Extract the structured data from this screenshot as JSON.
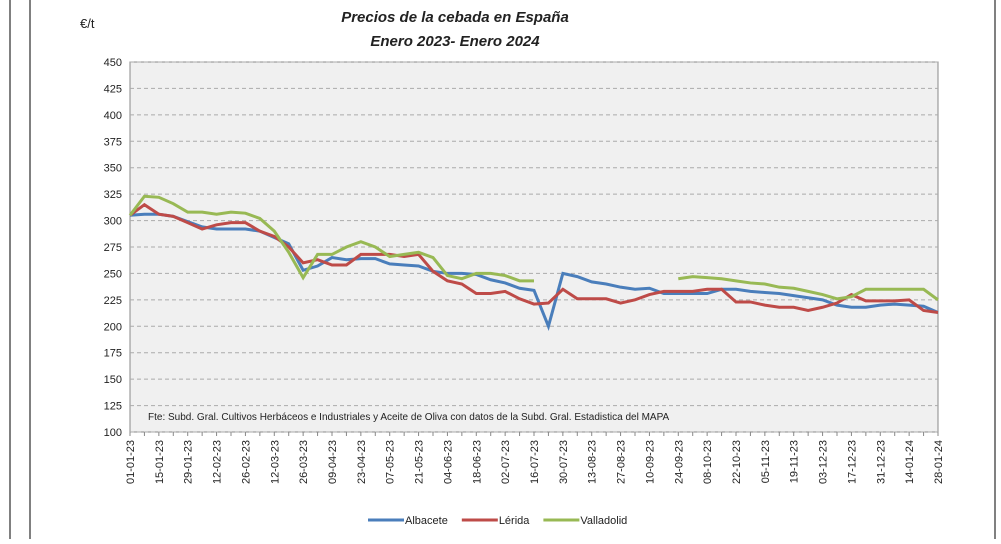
{
  "chart_data": {
    "type": "line",
    "title": "Precios de la cebada en España",
    "subtitle": "Enero 2023- Enero 2024",
    "y_label": "€/t",
    "annotation": "Fte: Subd. Gral. Cultivos Herbáceos e Industriales y Aceite de Oliva con datos de la Subd. Gral. Estadistica del MAPA",
    "categories": [
      "01-01-23",
      null,
      "15-01-23",
      null,
      "29-01-23",
      null,
      "12-02-23",
      null,
      "26-02-23",
      null,
      "12-03-23",
      null,
      "26-03-23",
      null,
      "09-04-23",
      null,
      "23-04-23",
      null,
      "07-05-23",
      null,
      "21-05-23",
      null,
      "04-06-23",
      null,
      "18-06-23",
      null,
      "02-07-23",
      null,
      "16-07-23",
      null,
      "30-07-23",
      null,
      "13-08-23",
      null,
      "27-08-23",
      null,
      "10-09-23",
      null,
      "24-09-23",
      null,
      "08-10-23",
      null,
      "22-10-23",
      null,
      "05-11-23",
      null,
      "19-11-23",
      null,
      "03-12-23",
      null,
      "17-12-23",
      null,
      "31-12-23",
      null,
      "14-01-24",
      null,
      "28-01-24"
    ],
    "series": [
      {
        "name": "Albacete",
        "color": "#4a7ebb",
        "values": [
          305,
          306,
          306,
          304,
          299,
          294,
          292,
          292,
          292,
          290,
          284,
          278,
          253,
          257,
          265,
          263,
          264,
          264,
          259,
          258,
          257,
          252,
          250,
          250,
          249,
          244,
          241,
          236,
          234,
          200,
          250,
          247,
          242,
          240,
          237,
          235,
          236,
          231,
          231,
          231,
          231,
          235,
          235,
          233,
          232,
          231,
          229,
          227,
          225,
          220,
          218,
          218,
          220,
          221,
          220,
          219,
          213
        ]
      },
      {
        "name": "Lérida",
        "color": "#be4b48",
        "values": [
          305,
          315,
          306,
          304,
          298,
          292,
          296,
          298,
          298,
          290,
          285,
          275,
          260,
          263,
          258,
          258,
          268,
          268,
          268,
          266,
          268,
          252,
          243,
          240,
          231,
          231,
          233,
          226,
          221,
          222,
          235,
          226,
          226,
          226,
          222,
          225,
          230,
          233,
          233,
          233,
          235,
          235,
          223,
          223,
          220,
          218,
          218,
          215,
          218,
          222,
          230,
          224,
          224,
          224,
          225,
          215,
          213
        ]
      },
      {
        "name": "Valladolid",
        "color": "#98b954",
        "values": [
          305,
          323,
          322,
          316,
          308,
          308,
          306,
          308,
          307,
          302,
          290,
          270,
          246,
          268,
          268,
          275,
          280,
          275,
          266,
          268,
          270,
          265,
          248,
          245,
          250,
          250,
          248,
          243,
          243,
          null,
          null,
          null,
          null,
          null,
          null,
          null,
          null,
          null,
          245,
          247,
          246,
          245,
          243,
          241,
          240,
          237,
          236,
          233,
          230,
          226,
          228,
          235,
          235,
          235,
          235,
          235,
          225
        ]
      }
    ],
    "ylim": [
      100,
      450
    ],
    "yticks": [
      100,
      125,
      150,
      175,
      200,
      225,
      250,
      275,
      300,
      325,
      350,
      375,
      400,
      425,
      450
    ],
    "grid": true,
    "legend": "bottom"
  }
}
